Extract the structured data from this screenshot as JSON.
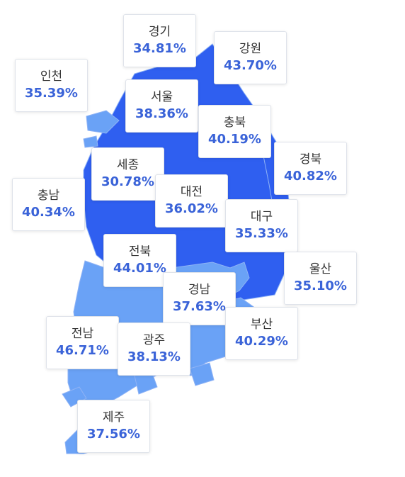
{
  "colors": {
    "dark": "#2f5ff0",
    "light": "#6aa2f6",
    "border": "#8fb3f5",
    "value": "#3a63d8"
  },
  "regions": [
    {
      "id": "gyeonggi",
      "name": "경기",
      "value": "34.81%"
    },
    {
      "id": "gangwon",
      "name": "강원",
      "value": "43.70%"
    },
    {
      "id": "incheon",
      "name": "인천",
      "value": "35.39%"
    },
    {
      "id": "seoul",
      "name": "서울",
      "value": "38.36%"
    },
    {
      "id": "chungbuk",
      "name": "충북",
      "value": "40.19%"
    },
    {
      "id": "gyeongbuk",
      "name": "경북",
      "value": "40.82%"
    },
    {
      "id": "sejong",
      "name": "세종",
      "value": "30.78%"
    },
    {
      "id": "chungnam",
      "name": "충남",
      "value": "40.34%"
    },
    {
      "id": "daejeon",
      "name": "대전",
      "value": "36.02%"
    },
    {
      "id": "daegu",
      "name": "대구",
      "value": "35.33%"
    },
    {
      "id": "jeonbuk",
      "name": "전북",
      "value": "44.01%"
    },
    {
      "id": "ulsan",
      "name": "울산",
      "value": "35.10%"
    },
    {
      "id": "gyeongnam",
      "name": "경남",
      "value": "37.63%"
    },
    {
      "id": "jeonnam",
      "name": "전남",
      "value": "46.71%"
    },
    {
      "id": "gwangju",
      "name": "광주",
      "value": "38.13%"
    },
    {
      "id": "busan",
      "name": "부산",
      "value": "40.29%"
    },
    {
      "id": "jeju",
      "name": "제주",
      "value": "37.56%"
    }
  ]
}
